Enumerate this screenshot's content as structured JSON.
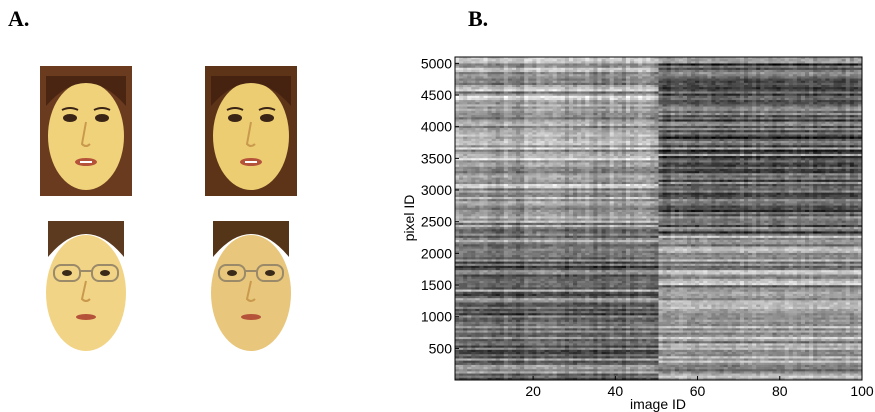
{
  "panels": {
    "a_label": "A.",
    "b_label": "B."
  },
  "faces": [
    {
      "name": "face-woman-1",
      "glasses": false
    },
    {
      "name": "face-woman-2",
      "glasses": false
    },
    {
      "name": "face-man-glasses-1",
      "glasses": true
    },
    {
      "name": "face-man-glasses-2",
      "glasses": true
    }
  ],
  "chart_data": {
    "type": "heatmap",
    "xlabel": "image ID",
    "ylabel": "pixel ID",
    "xlim": [
      1,
      100
    ],
    "ylim": [
      1,
      5100
    ],
    "x_ticks": [
      20,
      40,
      60,
      80,
      100
    ],
    "y_ticks": [
      500,
      1000,
      1500,
      2000,
      2500,
      3000,
      3500,
      4000,
      4500,
      5000
    ],
    "colormap": "gray",
    "grid": false,
    "group_boundary_image_id": 50
  }
}
